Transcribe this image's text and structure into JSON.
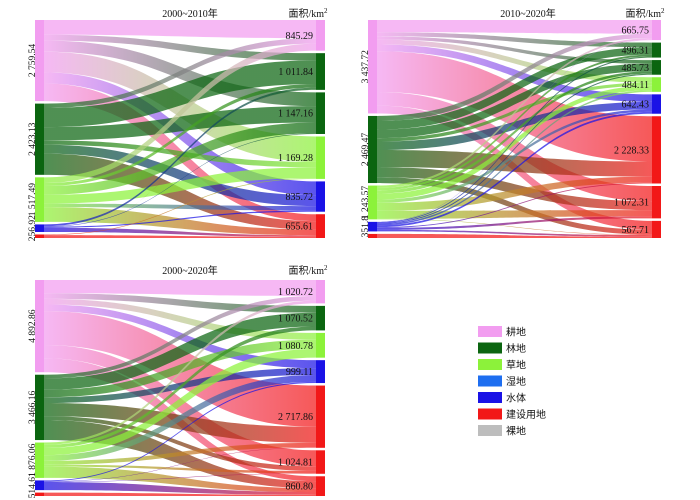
{
  "colors": {
    "cropland": "#f29df0",
    "forest": "#0b6510",
    "grassland": "#8cf23a",
    "wetland": "#1e6ef0",
    "water": "#1a12e6",
    "construction": "#f21818",
    "bare": "#bdbdbd"
  },
  "legend": [
    {
      "key": "cropland",
      "label": "耕地"
    },
    {
      "key": "forest",
      "label": "林地"
    },
    {
      "key": "grassland",
      "label": "草地"
    },
    {
      "key": "wetland",
      "label": "湿地"
    },
    {
      "key": "water",
      "label": "水体"
    },
    {
      "key": "construction",
      "label": "建设用地"
    },
    {
      "key": "bare",
      "label": "裸地"
    }
  ],
  "chart_data": [
    {
      "type": "sankey",
      "title": "2000~2010年",
      "unit_label": "面积/km",
      "unit_sup": "2",
      "left_nodes": [
        {
          "key": "cropland",
          "value": 2759.54,
          "label": "2 759.54"
        },
        {
          "key": "forest",
          "value": 2423.13,
          "label": "2 423.13"
        },
        {
          "key": "grassland",
          "value": 1517.49,
          "label": "1 517.49"
        },
        {
          "key": "water",
          "value": 256.92,
          "label": "256.92"
        },
        {
          "key": "construction",
          "value": 120,
          "label": ""
        }
      ],
      "right_nodes": [
        {
          "key": "cropland",
          "value": 845.29,
          "label": "845.29"
        },
        {
          "key": "forest",
          "value": 1011.84,
          "label": "1 011.84"
        },
        {
          "key": "forest",
          "value": 1147.16,
          "label": "1 147.16"
        },
        {
          "key": "grassland",
          "value": 1169.28,
          "label": "1 169.28"
        },
        {
          "key": "water",
          "value": 835.72,
          "label": "835.72"
        },
        {
          "key": "construction",
          "value": 655.61,
          "label": "655.61"
        }
      ],
      "links": [
        [
          0,
          0,
          500
        ],
        [
          0,
          1,
          200
        ],
        [
          0,
          2,
          380
        ],
        [
          0,
          3,
          700
        ],
        [
          0,
          4,
          380
        ],
        [
          0,
          5,
          599.54
        ],
        [
          1,
          0,
          150
        ],
        [
          1,
          1,
          650
        ],
        [
          1,
          2,
          450
        ],
        [
          1,
          3,
          150
        ],
        [
          1,
          4,
          300
        ],
        [
          1,
          5,
          723.13
        ],
        [
          2,
          0,
          195.29
        ],
        [
          2,
          1,
          100
        ],
        [
          2,
          2,
          300
        ],
        [
          2,
          3,
          300
        ],
        [
          2,
          4,
          120
        ],
        [
          2,
          5,
          502.2
        ],
        [
          3,
          1,
          60
        ],
        [
          3,
          2,
          17.16
        ],
        [
          3,
          4,
          35.72
        ],
        [
          3,
          5,
          144.04
        ],
        [
          4,
          1,
          1.84
        ],
        [
          4,
          3,
          19.28
        ],
        [
          4,
          5,
          98.88
        ]
      ]
    },
    {
      "type": "sankey",
      "title": "2010~2020年",
      "unit_label": "面积/km",
      "unit_sup": "2",
      "left_nodes": [
        {
          "key": "cropland",
          "value": 3437.72,
          "label": "3 437.72"
        },
        {
          "key": "forest",
          "value": 2469.47,
          "label": "2 469.47"
        },
        {
          "key": "grassland",
          "value": 1243.57,
          "label": "1 243.57"
        },
        {
          "key": "water",
          "value": 351.8,
          "label": "351.8"
        },
        {
          "key": "construction",
          "value": 150,
          "label": ""
        }
      ],
      "right_nodes": [
        {
          "key": "cropland",
          "value": 665.75,
          "label": "665.75"
        },
        {
          "key": "forest",
          "value": 496.31,
          "label": "496.31"
        },
        {
          "key": "forest",
          "value": 485.73,
          "label": "485.73"
        },
        {
          "key": "grassland",
          "value": 484.11,
          "label": "484.11"
        },
        {
          "key": "water",
          "value": 642.43,
          "label": "642.43"
        },
        {
          "key": "construction",
          "value": 2228.33,
          "label": "2 228.33"
        },
        {
          "key": "construction",
          "value": 1072.31,
          "label": "1 072.31"
        },
        {
          "key": "construction",
          "value": 567.71,
          "label": "567.71"
        }
      ],
      "links": [
        [
          0,
          0,
          450
        ],
        [
          0,
          1,
          150
        ],
        [
          0,
          2,
          120
        ],
        [
          0,
          3,
          180
        ],
        [
          0,
          4,
          250
        ],
        [
          0,
          5,
          1500
        ],
        [
          0,
          6,
          500
        ],
        [
          0,
          7,
          287.72
        ],
        [
          1,
          0,
          150
        ],
        [
          1,
          1,
          250
        ],
        [
          1,
          2,
          250
        ],
        [
          1,
          3,
          100
        ],
        [
          1,
          4,
          250
        ],
        [
          1,
          5,
          500
        ],
        [
          1,
          6,
          300
        ],
        [
          1,
          7,
          169.47
        ],
        [
          2,
          0,
          60
        ],
        [
          2,
          1,
          60
        ],
        [
          2,
          2,
          80
        ],
        [
          2,
          3,
          150
        ],
        [
          2,
          4,
          80
        ],
        [
          2,
          5,
          200
        ],
        [
          2,
          6,
          200
        ],
        [
          2,
          7,
          13.57
        ],
        [
          3,
          0,
          5.75
        ],
        [
          3,
          1,
          36.31
        ],
        [
          3,
          2,
          35.73
        ],
        [
          3,
          3,
          54.11
        ],
        [
          3,
          4,
          62.43
        ],
        [
          3,
          5,
          28.33
        ],
        [
          3,
          6,
          72.31
        ],
        [
          3,
          7,
          56.84
        ],
        [
          4,
          7,
          40.1
        ]
      ]
    },
    {
      "type": "sankey",
      "title": "2000~2020年",
      "unit_label": "面积/km",
      "unit_sup": "2",
      "left_nodes": [
        {
          "key": "cropland",
          "value": 4892.86,
          "label": "4 892.86"
        },
        {
          "key": "forest",
          "value": 3466.16,
          "label": "3 466.16"
        },
        {
          "key": "grassland",
          "value": 1876.06,
          "label": "1 876.06"
        },
        {
          "key": "water",
          "value": 514.61,
          "label": "514.61"
        },
        {
          "key": "construction",
          "value": 180,
          "label": ""
        }
      ],
      "right_nodes": [
        {
          "key": "cropland",
          "value": 1020.72,
          "label": "1 020.72"
        },
        {
          "key": "forest",
          "value": 1070.52,
          "label": "1 070.52"
        },
        {
          "key": "grassland",
          "value": 1080.78,
          "label": "1 080.78"
        },
        {
          "key": "water",
          "value": 999.11,
          "label": "999.11"
        },
        {
          "key": "construction",
          "value": 2717.86,
          "label": "2 717.86"
        },
        {
          "key": "construction",
          "value": 1024.81,
          "label": "1 024.81"
        },
        {
          "key": "construction",
          "value": 860.8,
          "label": "860.80"
        }
      ],
      "links": [
        [
          0,
          0,
          700
        ],
        [
          0,
          1,
          300
        ],
        [
          0,
          2,
          300
        ],
        [
          0,
          3,
          350
        ],
        [
          0,
          4,
          1800
        ],
        [
          0,
          5,
          700
        ],
        [
          0,
          6,
          742.86
        ],
        [
          1,
          0,
          200
        ],
        [
          1,
          1,
          600
        ],
        [
          1,
          2,
          400
        ],
        [
          1,
          3,
          300
        ],
        [
          1,
          4,
          700
        ],
        [
          1,
          5,
          200
        ],
        [
          1,
          6,
          1066.16
        ],
        [
          2,
          0,
          120
        ],
        [
          2,
          1,
          170.52
        ],
        [
          2,
          2,
          380.78
        ],
        [
          2,
          3,
          300
        ],
        [
          2,
          4,
          200
        ],
        [
          2,
          5,
          104.81
        ],
        [
          2,
          6,
          599.95
        ],
        [
          3,
          0,
          0.72
        ],
        [
          3,
          1,
          0
        ],
        [
          3,
          2,
          0
        ],
        [
          3,
          3,
          49.11
        ],
        [
          3,
          4,
          17.86
        ],
        [
          3,
          5,
          20
        ],
        [
          3,
          6,
          426.92
        ],
        [
          4,
          6,
          180
        ]
      ]
    }
  ]
}
